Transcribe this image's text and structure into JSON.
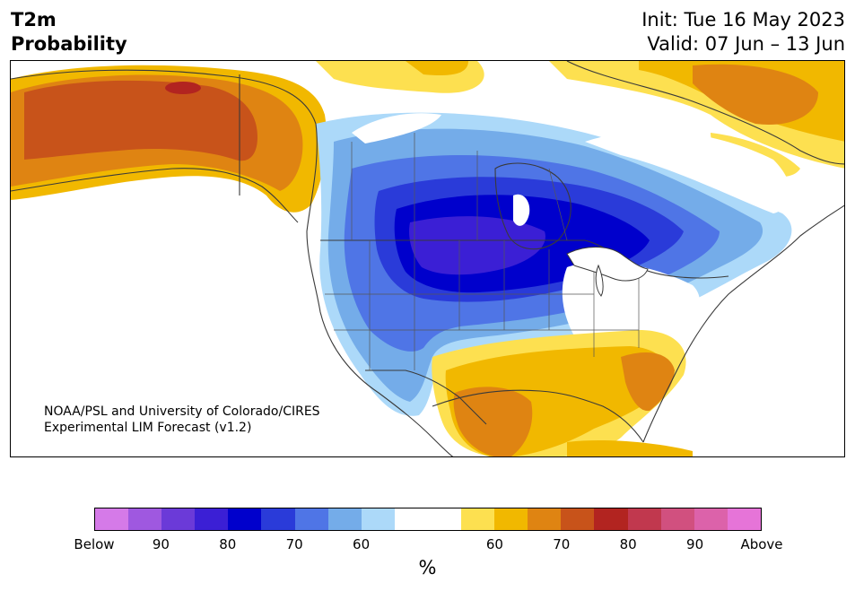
{
  "header": {
    "title_line1": "T2m",
    "title_line2": "Probability",
    "init": "Init: Tue 16 May 2023",
    "valid": "Valid: 07 Jun – 13 Jun"
  },
  "map": {
    "credit_line1": "NOAA/PSL and University of Colorado/CIRES",
    "credit_line2": "Experimental LIM Forecast (v1.2)"
  },
  "colorbar": {
    "colors": [
      "#d57ae8",
      "#9f58e0",
      "#6b3ad8",
      "#3b1fd5",
      "#0000cc",
      "#2a3bd9",
      "#4f75e6",
      "#74ace9",
      "#acd9f9",
      "#ffffff",
      "#ffffff",
      "#fde050",
      "#f1b800",
      "#df8412",
      "#c8531a",
      "#b22420",
      "#c1384e",
      "#d1507f",
      "#dc62aa",
      "#e674d8"
    ],
    "ticks": [
      "Below",
      "90",
      "80",
      "70",
      "60",
      "60",
      "70",
      "80",
      "90",
      "Above"
    ],
    "unit": "%"
  },
  "legend_colors": {
    "below_90": "#6b3ad8",
    "below_80": "#0000cc",
    "below_70": "#4f75e6",
    "below_60": "#acd9f9",
    "above_60": "#fde050",
    "above_70": "#df8412",
    "above_80": "#b22420"
  }
}
